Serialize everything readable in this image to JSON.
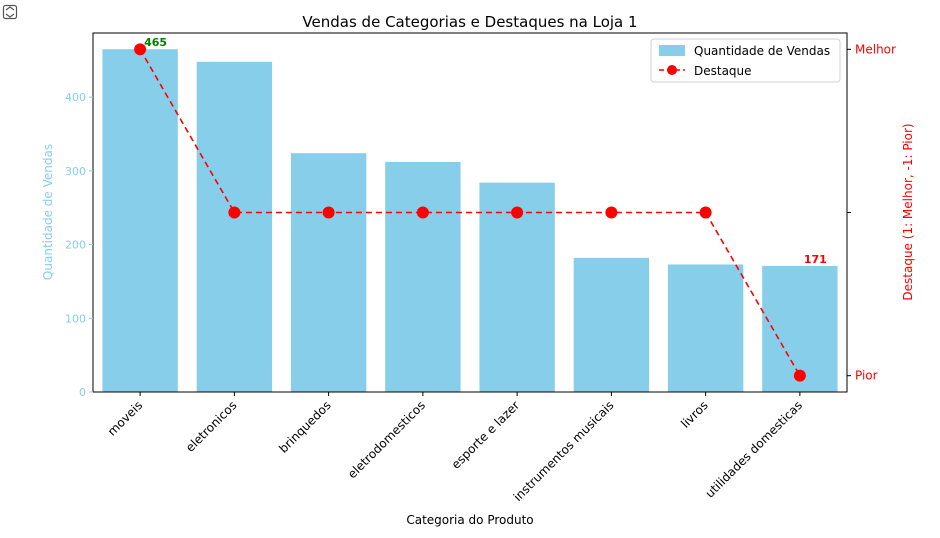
{
  "toolbar": {
    "icon": "output-toggle-icon"
  },
  "chart_data": {
    "type": "bar",
    "title": "Vendas de Categorias e Destaques na Loja 1",
    "xlabel": "Categoria do Produto",
    "ylabel": "Quantidade de Vendas",
    "ylabel_right": "Destaque (1: Melhor, -1: Pior)",
    "categories": [
      "moveis",
      "eletronicos",
      "brinquedos",
      "eletrodomesticos",
      "esporte e lazer",
      "instrumentos musicais",
      "livros",
      "utilidades domesticas"
    ],
    "series": [
      {
        "name": "Quantidade de Vendas",
        "type": "bar",
        "axis": "left",
        "color": "#87CEEB",
        "values": [
          465,
          448,
          324,
          312,
          284,
          182,
          173,
          171
        ]
      },
      {
        "name": "Destaque",
        "type": "line",
        "axis": "right",
        "color": "#FF0000",
        "line_style": "dashed",
        "marker": "circle",
        "values": [
          1,
          0,
          0,
          0,
          0,
          0,
          0,
          -1
        ]
      }
    ],
    "ylim": [
      0,
      487
    ],
    "yticks": [
      0,
      100,
      200,
      300,
      400
    ],
    "ylim_right": [
      -1.1,
      1.1
    ],
    "yticks_right": [
      {
        "value": 1,
        "label": "Melhor"
      },
      {
        "value": 0,
        "label": ""
      },
      {
        "value": -1,
        "label": "Pior"
      }
    ],
    "annotations": [
      {
        "category": "moveis",
        "text": "465",
        "color": "#008000"
      },
      {
        "category": "utilidades domesticas",
        "text": "171",
        "color": "#FF0000"
      }
    ],
    "left_axis_color": "#87CEEB",
    "right_axis_color": "#FF0000",
    "grid": false,
    "legend_position": "top-right"
  }
}
